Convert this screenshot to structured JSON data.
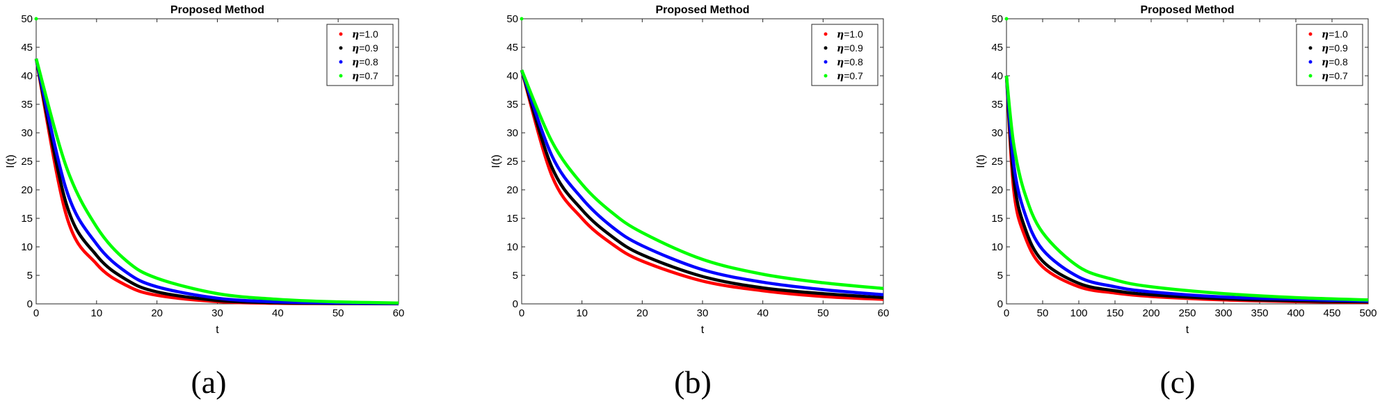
{
  "chart_data": [
    {
      "type": "line",
      "panel_label": "(a)",
      "title": "Proposed Method",
      "xlabel": "t",
      "ylabel": "I(t)",
      "xlim": [
        0,
        60
      ],
      "ylim": [
        0,
        50
      ],
      "xticks": [
        0,
        10,
        20,
        30,
        40,
        50,
        60
      ],
      "yticks": [
        0,
        5,
        10,
        15,
        20,
        25,
        30,
        35,
        40,
        45,
        50
      ],
      "grid": false,
      "legend_position": "top-right",
      "x": [
        0,
        5,
        10,
        15,
        20,
        30,
        40,
        50,
        60
      ],
      "series": [
        {
          "name": "η=1.0",
          "color": "#ff0000",
          "values": [
            43,
            15.5,
            7,
            3.2,
            1.5,
            0.4,
            0.1,
            0.05,
            0.02
          ]
        },
        {
          "name": "η=0.9",
          "color": "#000000",
          "values": [
            43,
            17.5,
            8.5,
            4.2,
            2.1,
            0.6,
            0.2,
            0.08,
            0.03
          ]
        },
        {
          "name": "η=0.8",
          "color": "#0000ff",
          "values": [
            43,
            20,
            10.5,
            5.5,
            3.0,
            1.0,
            0.35,
            0.15,
            0.06
          ]
        },
        {
          "name": "η=0.7",
          "color": "#00ff00",
          "values": [
            43,
            24,
            13.5,
            7.5,
            4.5,
            1.8,
            0.8,
            0.35,
            0.15
          ]
        }
      ]
    },
    {
      "type": "line",
      "panel_label": "(b)",
      "title": "Proposed Method",
      "xlabel": "t",
      "ylabel": "I(t)",
      "xlim": [
        0,
        60
      ],
      "ylim": [
        0,
        50
      ],
      "xticks": [
        0,
        10,
        20,
        30,
        40,
        50,
        60
      ],
      "yticks": [
        0,
        5,
        10,
        15,
        20,
        25,
        30,
        35,
        40,
        45,
        50
      ],
      "grid": false,
      "legend_position": "top-right",
      "x": [
        0,
        5,
        10,
        15,
        20,
        30,
        40,
        50,
        60
      ],
      "series": [
        {
          "name": "η=1.0",
          "color": "#ff0000",
          "values": [
            41,
            22.5,
            15,
            10.5,
            7.5,
            4.0,
            2.3,
            1.3,
            0.8
          ]
        },
        {
          "name": "η=0.9",
          "color": "#000000",
          "values": [
            41,
            24,
            16.5,
            11.8,
            8.6,
            4.8,
            2.8,
            1.8,
            1.1
          ]
        },
        {
          "name": "η=0.8",
          "color": "#0000ff",
          "values": [
            41,
            26,
            18.5,
            13.5,
            10.2,
            6.0,
            3.8,
            2.5,
            1.6
          ]
        },
        {
          "name": "η=0.7",
          "color": "#00ff00",
          "values": [
            41,
            28.5,
            21,
            16,
            12.5,
            7.8,
            5.2,
            3.7,
            2.7
          ]
        }
      ]
    },
    {
      "type": "line",
      "panel_label": "(c)",
      "title": "Proposed Method",
      "xlabel": "t",
      "ylabel": "I(t)",
      "xlim": [
        0,
        500
      ],
      "ylim": [
        0,
        50
      ],
      "xticks": [
        0,
        50,
        100,
        150,
        200,
        250,
        300,
        350,
        400,
        450,
        500
      ],
      "yticks": [
        0,
        5,
        10,
        15,
        20,
        25,
        30,
        35,
        40,
        45,
        50
      ],
      "grid": false,
      "legend_position": "top-right",
      "x": [
        0,
        10,
        25,
        50,
        100,
        150,
        200,
        300,
        400,
        500
      ],
      "series": [
        {
          "name": "η=1.0",
          "color": "#ff0000",
          "values": [
            40,
            20,
            12,
            6.5,
            3.0,
            1.9,
            1.3,
            0.7,
            0.4,
            0.25
          ]
        },
        {
          "name": "η=0.9",
          "color": "#000000",
          "values": [
            40,
            22,
            13.5,
            7.5,
            3.6,
            2.3,
            1.6,
            0.9,
            0.55,
            0.35
          ]
        },
        {
          "name": "η=0.8",
          "color": "#0000ff",
          "values": [
            40,
            24.5,
            16,
            9.5,
            4.7,
            3.0,
            2.1,
            1.2,
            0.8,
            0.5
          ]
        },
        {
          "name": "η=0.7",
          "color": "#00ff00",
          "values": [
            40,
            28,
            19.5,
            12.5,
            6.5,
            4.2,
            3.0,
            1.8,
            1.1,
            0.7
          ]
        }
      ]
    }
  ]
}
